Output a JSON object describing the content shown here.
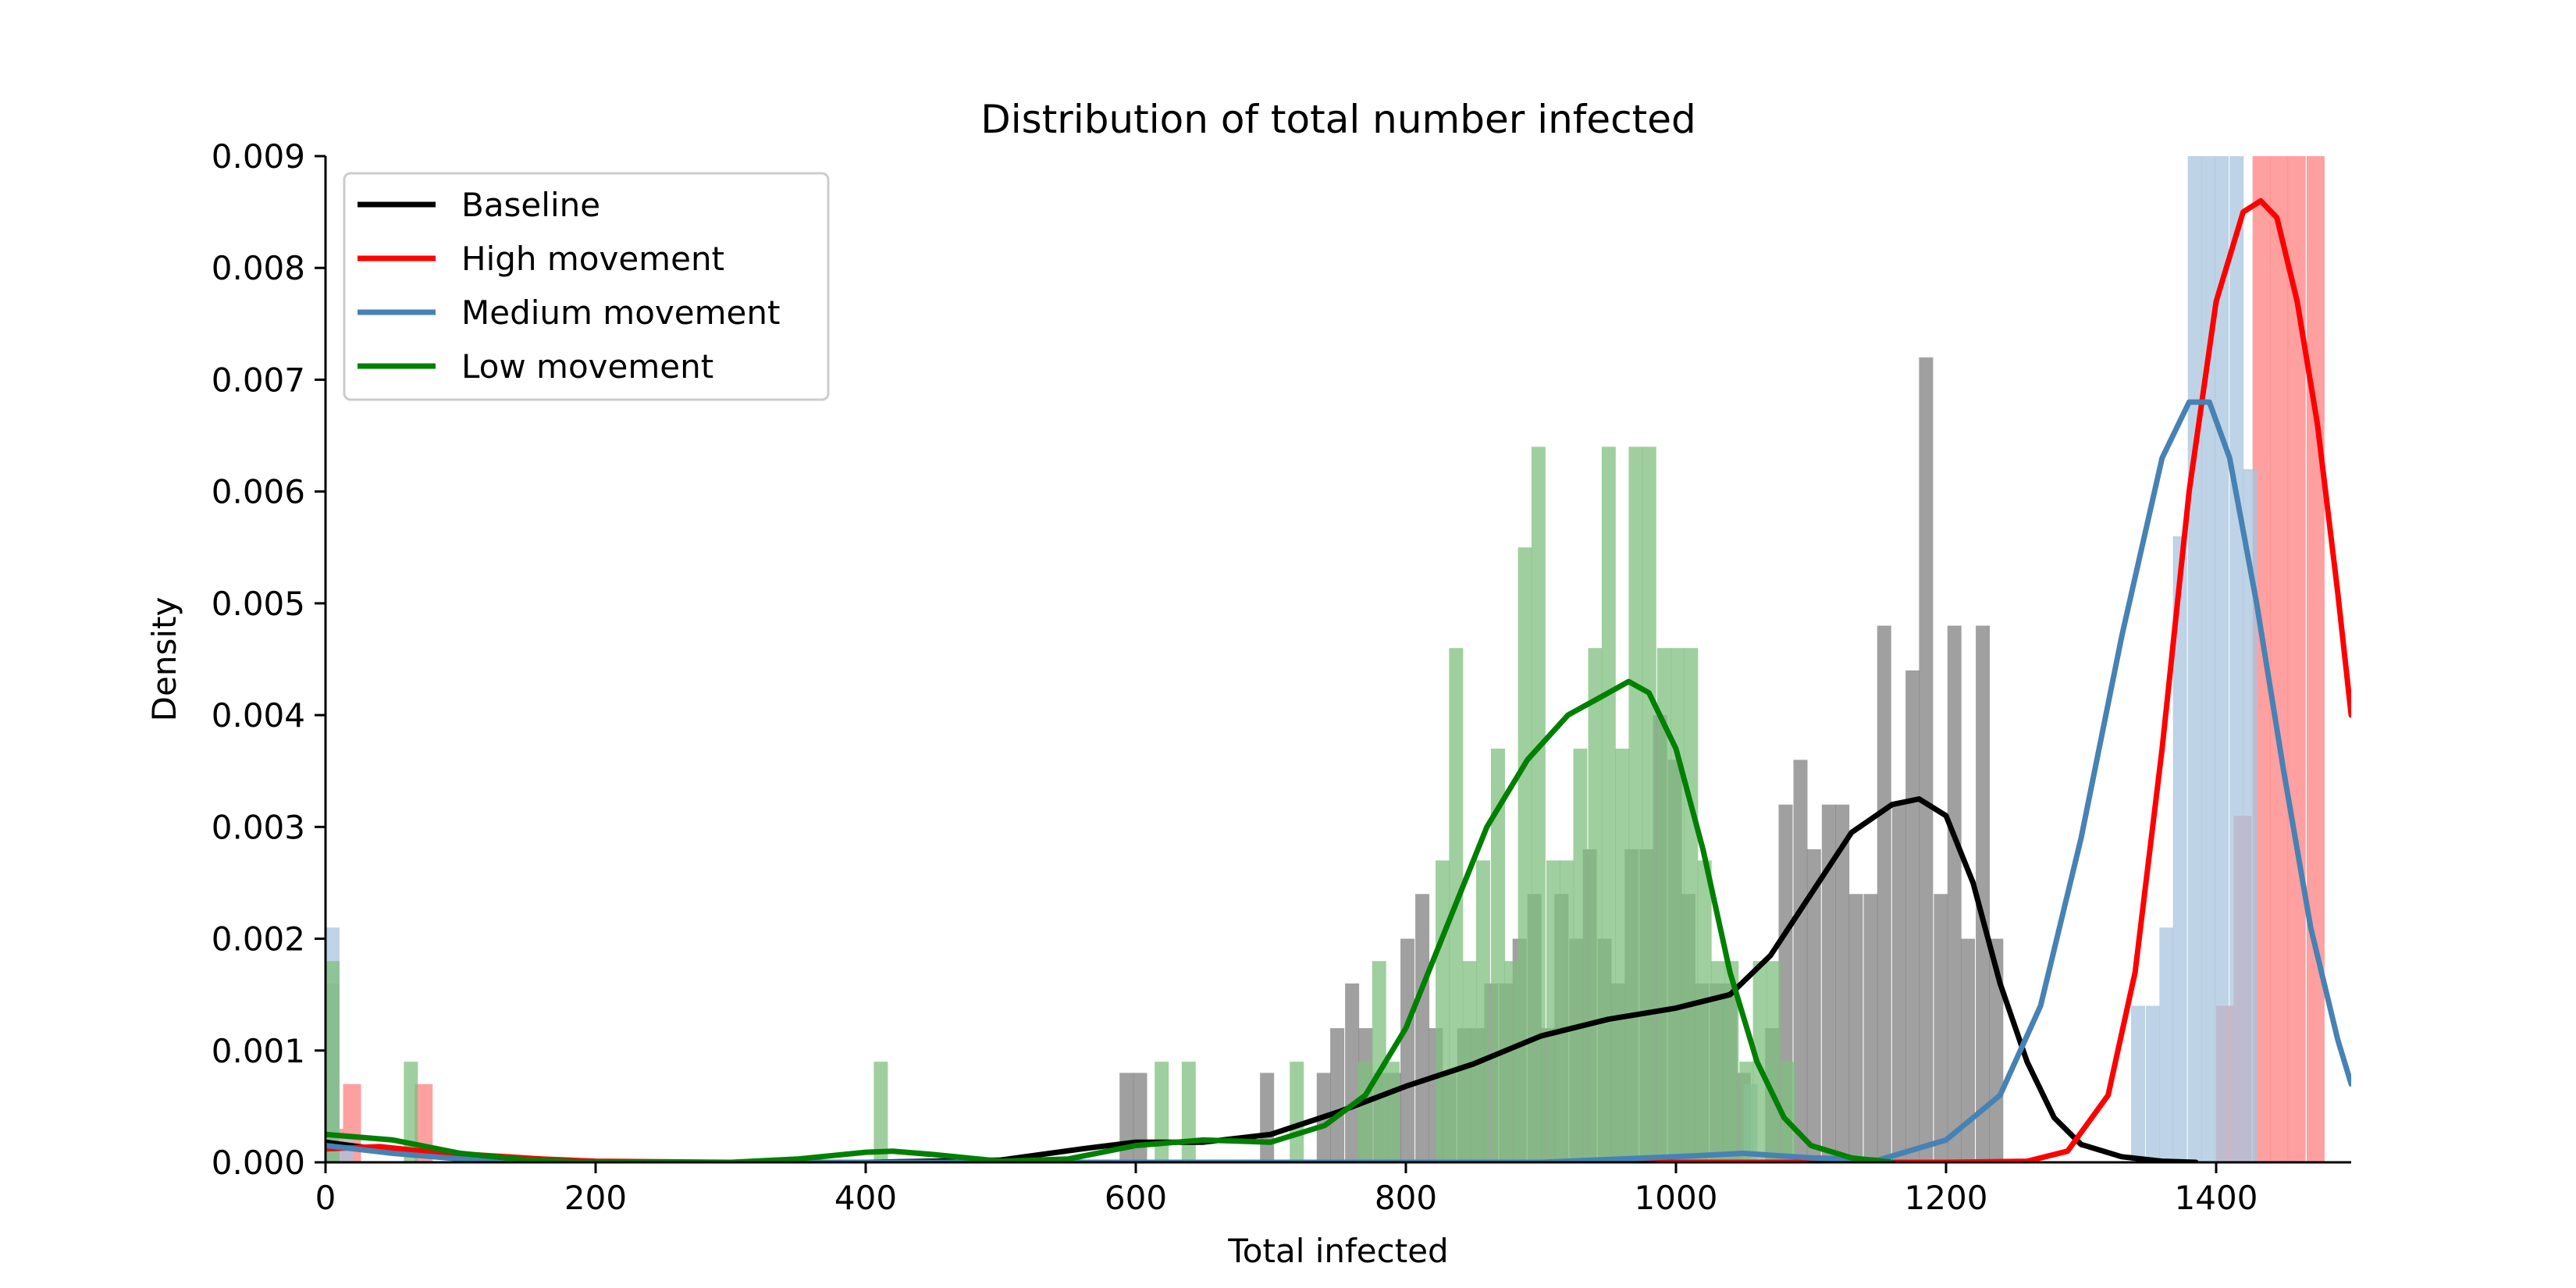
{
  "chart_data": {
    "type": "histogram_kde",
    "title": "Distribution of total number infected",
    "xlabel": "Total infected",
    "ylabel": "Density",
    "xlim": [
      0,
      1500
    ],
    "ylim": [
      0,
      0.009
    ],
    "xticks": [
      "0",
      "200",
      "400",
      "600",
      "800",
      "1000",
      "1200",
      "1400"
    ],
    "yticks": [
      "0.000",
      "0.001",
      "0.002",
      "0.003",
      "0.004",
      "0.005",
      "0.006",
      "0.007",
      "0.008",
      "0.009"
    ],
    "grid": false,
    "legend_position": "upper-left",
    "series": [
      {
        "name": "Baseline",
        "line_color": "#000000",
        "bar_color": "#808080",
        "hist_bin_width": 10.4,
        "hist": [
          [
            0,
            0.0016
          ],
          [
            588,
            0.0008
          ],
          [
            598,
            0.0008
          ],
          [
            692,
            0.0008
          ],
          [
            734,
            0.0008
          ],
          [
            744,
            0.0012
          ],
          [
            755,
            0.0016
          ],
          [
            765,
            0.0012
          ],
          [
            776,
            0.0008
          ],
          [
            786,
            0.0008
          ],
          [
            796,
            0.002
          ],
          [
            807,
            0.0024
          ],
          [
            817,
            0.0012
          ],
          [
            827,
            0.0008
          ],
          [
            838,
            0.0012
          ],
          [
            848,
            0.0012
          ],
          [
            858,
            0.0016
          ],
          [
            869,
            0.0016
          ],
          [
            879,
            0.002
          ],
          [
            890,
            0.0024
          ],
          [
            900,
            0.0012
          ],
          [
            910,
            0.0024
          ],
          [
            921,
            0.002
          ],
          [
            931,
            0.0028
          ],
          [
            942,
            0.002
          ],
          [
            952,
            0.0016
          ],
          [
            962,
            0.0028
          ],
          [
            973,
            0.0028
          ],
          [
            983,
            0.004
          ],
          [
            994,
            0.0036
          ],
          [
            1004,
            0.0024
          ],
          [
            1014,
            0.0016
          ],
          [
            1025,
            0.0016
          ],
          [
            1035,
            0.0016
          ],
          [
            1045,
            0.0008
          ],
          [
            1066,
            0.0012
          ],
          [
            1076,
            0.0032
          ],
          [
            1087,
            0.0036
          ],
          [
            1097,
            0.0028
          ],
          [
            1108,
            0.0032
          ],
          [
            1118,
            0.0032
          ],
          [
            1128,
            0.0024
          ],
          [
            1139,
            0.0024
          ],
          [
            1149,
            0.0048
          ],
          [
            1160,
            0.0032
          ],
          [
            1170,
            0.0044
          ],
          [
            1180,
            0.0072
          ],
          [
            1191,
            0.0024
          ],
          [
            1201,
            0.0048
          ],
          [
            1211,
            0.002
          ],
          [
            1222,
            0.0048
          ],
          [
            1232,
            0.002
          ]
        ],
        "kde": [
          [
            0,
            0.00018
          ],
          [
            50,
            0.0001
          ],
          [
            100,
            3e-05
          ],
          [
            150,
            1e-05
          ],
          [
            200,
            0.0
          ],
          [
            300,
            0.0
          ],
          [
            400,
            0.0
          ],
          [
            500,
            2e-05
          ],
          [
            560,
            0.00012
          ],
          [
            600,
            0.00018
          ],
          [
            650,
            0.00018
          ],
          [
            700,
            0.00025
          ],
          [
            750,
            0.00045
          ],
          [
            800,
            0.00068
          ],
          [
            850,
            0.00088
          ],
          [
            900,
            0.00113
          ],
          [
            950,
            0.00128
          ],
          [
            1000,
            0.00138
          ],
          [
            1040,
            0.0015
          ],
          [
            1070,
            0.00185
          ],
          [
            1100,
            0.0024
          ],
          [
            1130,
            0.00295
          ],
          [
            1160,
            0.0032
          ],
          [
            1180,
            0.00325
          ],
          [
            1200,
            0.0031
          ],
          [
            1220,
            0.0025
          ],
          [
            1240,
            0.0016
          ],
          [
            1260,
            0.0009
          ],
          [
            1280,
            0.0004
          ],
          [
            1300,
            0.00016
          ],
          [
            1330,
            5e-05
          ],
          [
            1360,
            1e-05
          ],
          [
            1385,
            0.0
          ]
        ]
      },
      {
        "name": "High movement",
        "line_color": "#ff0000",
        "bar_color": "#ff8080",
        "hist_bin_width": 13.3,
        "hist": [
          [
            0,
            0.0003
          ],
          [
            13,
            0.0007
          ],
          [
            66,
            0.0007
          ],
          [
            1400,
            0.0014
          ],
          [
            1413,
            0.0031
          ],
          [
            1427,
            0.009
          ],
          [
            1440,
            0.009
          ],
          [
            1453,
            0.009
          ],
          [
            1467,
            0.009
          ]
        ],
        "kde": [
          [
            0,
            0.00012
          ],
          [
            40,
            0.00014
          ],
          [
            80,
            9e-05
          ],
          [
            120,
            6e-05
          ],
          [
            160,
            3e-05
          ],
          [
            200,
            1e-05
          ],
          [
            300,
            0.0
          ],
          [
            1200,
            0.0
          ],
          [
            1260,
            1e-05
          ],
          [
            1290,
            0.0001
          ],
          [
            1320,
            0.0006
          ],
          [
            1340,
            0.0017
          ],
          [
            1360,
            0.0037
          ],
          [
            1380,
            0.006
          ],
          [
            1400,
            0.0077
          ],
          [
            1420,
            0.0085
          ],
          [
            1433,
            0.0086
          ],
          [
            1445,
            0.00845
          ],
          [
            1460,
            0.0077
          ],
          [
            1475,
            0.0066
          ],
          [
            1490,
            0.0051
          ],
          [
            1500,
            0.004
          ]
        ]
      },
      {
        "name": "Medium movement",
        "line_color": "#4682b4",
        "bar_color": "#a8c4de",
        "hist_bin_width": 10.4,
        "hist": [
          [
            0,
            0.0021
          ],
          [
            10,
            0.0002
          ],
          [
            1050,
            0.0007
          ],
          [
            1337,
            0.0014
          ],
          [
            1348,
            0.0014
          ],
          [
            1358,
            0.0021
          ],
          [
            1368,
            0.0056
          ],
          [
            1379,
            0.009
          ],
          [
            1389,
            0.009
          ],
          [
            1399,
            0.009
          ],
          [
            1410,
            0.009
          ],
          [
            1420,
            0.0062
          ]
        ],
        "kde": [
          [
            0,
            0.00015
          ],
          [
            50,
            8e-05
          ],
          [
            100,
            3e-05
          ],
          [
            150,
            1e-05
          ],
          [
            200,
            0.0
          ],
          [
            900,
            0.0
          ],
          [
            1000,
            5e-05
          ],
          [
            1050,
            8e-05
          ],
          [
            1100,
            4e-05
          ],
          [
            1150,
            2e-05
          ],
          [
            1200,
            0.0002
          ],
          [
            1240,
            0.0006
          ],
          [
            1270,
            0.0014
          ],
          [
            1300,
            0.0029
          ],
          [
            1330,
            0.0047
          ],
          [
            1360,
            0.0063
          ],
          [
            1380,
            0.0068
          ],
          [
            1395,
            0.0068
          ],
          [
            1410,
            0.0063
          ],
          [
            1430,
            0.005
          ],
          [
            1450,
            0.0035
          ],
          [
            1470,
            0.0021
          ],
          [
            1490,
            0.0011
          ],
          [
            1500,
            0.0007
          ]
        ]
      },
      {
        "name": "Low movement",
        "line_color": "#008000",
        "bar_color": "#7fbf7f",
        "hist_bin_width": 10.4,
        "hist": [
          [
            0,
            0.0018
          ],
          [
            58,
            0.0009
          ],
          [
            406,
            0.0009
          ],
          [
            614,
            0.0009
          ],
          [
            634,
            0.0009
          ],
          [
            714,
            0.0009
          ],
          [
            764,
            0.0009
          ],
          [
            775,
            0.0018
          ],
          [
            785,
            0.0009
          ],
          [
            822,
            0.0027
          ],
          [
            832,
            0.0046
          ],
          [
            842,
            0.0018
          ],
          [
            852,
            0.0027
          ],
          [
            863,
            0.0037
          ],
          [
            873,
            0.0018
          ],
          [
            883,
            0.0055
          ],
          [
            893,
            0.0064
          ],
          [
            904,
            0.0027
          ],
          [
            914,
            0.0027
          ],
          [
            924,
            0.0037
          ],
          [
            935,
            0.0046
          ],
          [
            945,
            0.0064
          ],
          [
            955,
            0.0037
          ],
          [
            965,
            0.0064
          ],
          [
            975,
            0.0064
          ],
          [
            986,
            0.0046
          ],
          [
            996,
            0.0046
          ],
          [
            1006,
            0.0046
          ],
          [
            1016,
            0.0027
          ],
          [
            1026,
            0.0018
          ],
          [
            1036,
            0.0018
          ],
          [
            1047,
            0.0009
          ],
          [
            1057,
            0.0018
          ],
          [
            1067,
            0.0018
          ],
          [
            1078,
            0.0009
          ]
        ],
        "kde": [
          [
            0,
            0.00025
          ],
          [
            50,
            0.0002
          ],
          [
            100,
            8e-05
          ],
          [
            150,
            2e-05
          ],
          [
            200,
            0.0
          ],
          [
            300,
            0.0
          ],
          [
            350,
            3e-05
          ],
          [
            400,
            9e-05
          ],
          [
            420,
            0.0001
          ],
          [
            450,
            7e-05
          ],
          [
            500,
            1e-05
          ],
          [
            550,
            3e-05
          ],
          [
            600,
            0.00015
          ],
          [
            650,
            0.0002
          ],
          [
            700,
            0.00018
          ],
          [
            740,
            0.00033
          ],
          [
            770,
            0.0006
          ],
          [
            800,
            0.0012
          ],
          [
            830,
            0.0021
          ],
          [
            860,
            0.003
          ],
          [
            890,
            0.0036
          ],
          [
            920,
            0.004
          ],
          [
            950,
            0.0042
          ],
          [
            965,
            0.0043
          ],
          [
            980,
            0.0042
          ],
          [
            1000,
            0.0037
          ],
          [
            1020,
            0.0028
          ],
          [
            1040,
            0.0017
          ],
          [
            1060,
            0.0009
          ],
          [
            1080,
            0.0004
          ],
          [
            1100,
            0.00015
          ],
          [
            1130,
            4e-05
          ],
          [
            1160,
            0.0
          ]
        ]
      }
    ]
  }
}
